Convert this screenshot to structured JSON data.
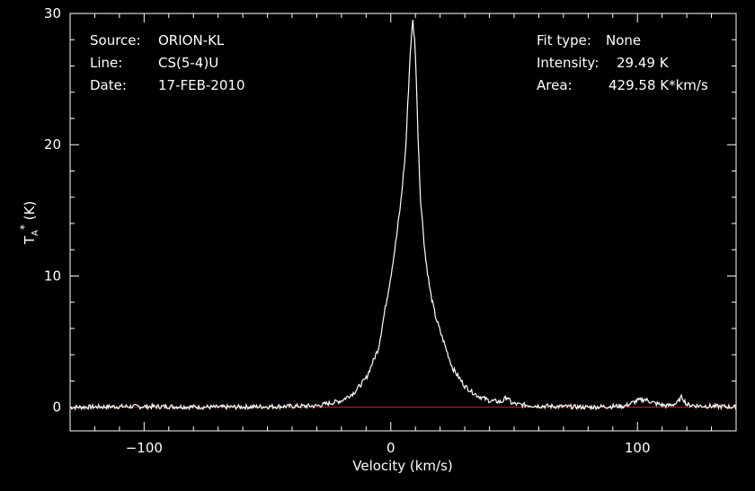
{
  "info_left": {
    "source_label": "Source:",
    "source_value": "ORION-KL",
    "line_label": "Line:",
    "line_value": "CS(5-4)U",
    "date_label": "Date:",
    "date_value": "17-FEB-2010"
  },
  "info_right": {
    "fit_label": "Fit type:",
    "fit_value": "None",
    "intensity_label": "Intensity:",
    "intensity_value": "29.49 K",
    "area_label": "Area:",
    "area_value": "429.58 K*km/s"
  },
  "chart_data": {
    "type": "line",
    "xlabel": "Velocity (km/s)",
    "ylabel": "T_A* (K)",
    "xlim": [
      -130,
      140
    ],
    "ylim": [
      -1.8,
      30
    ],
    "xticks": [
      -100,
      0,
      100
    ],
    "xtick_labels": [
      "−100",
      "0",
      "100"
    ],
    "yticks": [
      0,
      10,
      20,
      30
    ],
    "ytick_labels": [
      "0",
      "10",
      "20",
      "30"
    ],
    "grid": false,
    "baseline": {
      "y": 0,
      "color": "#cc2222"
    },
    "line_color": "#ffffff",
    "background": "#000000",
    "series": [
      {
        "x": [
          -130,
          -110,
          -90,
          -70,
          -50,
          -30,
          -20,
          -15,
          -10,
          -5,
          -2,
          0,
          2,
          4,
          6,
          7,
          8,
          9,
          10,
          11,
          12,
          14,
          16,
          18,
          20,
          25,
          30,
          35,
          40,
          45,
          47,
          49,
          52,
          60,
          80,
          95,
          100,
          103,
          107,
          112,
          116,
          118,
          120,
          125,
          135,
          140
        ],
        "values": [
          0.0,
          0.05,
          0.05,
          0.0,
          0.05,
          0.1,
          0.5,
          1.1,
          2.2,
          4.5,
          7.8,
          10.0,
          12.5,
          15.5,
          19.5,
          23.5,
          27.5,
          29.49,
          27.0,
          21.0,
          16.0,
          11.5,
          8.8,
          7.0,
          5.8,
          3.0,
          1.6,
          0.9,
          0.5,
          0.4,
          0.8,
          0.3,
          0.2,
          0.1,
          0.0,
          0.1,
          0.5,
          0.6,
          0.3,
          0.1,
          0.3,
          0.8,
          0.2,
          0.1,
          0.05,
          0.0
        ]
      }
    ]
  }
}
